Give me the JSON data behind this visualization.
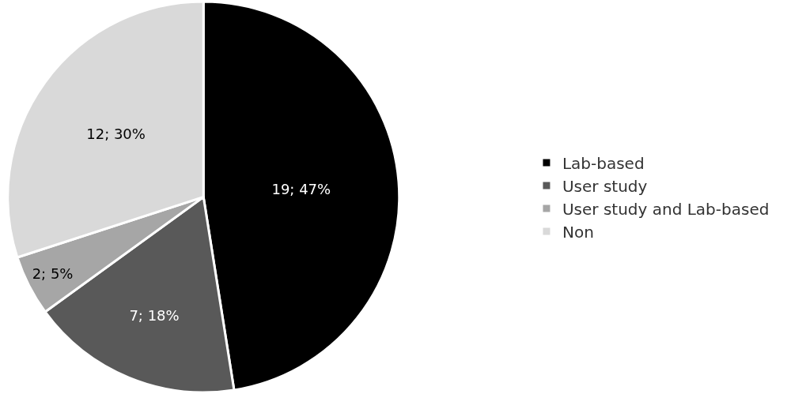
{
  "chart_data": {
    "type": "pie",
    "categories": [
      "Lab-based",
      "User study",
      "User study and Lab-based",
      "Non"
    ],
    "values": [
      19,
      7,
      2,
      12
    ],
    "colors": [
      "#000000",
      "#595959",
      "#a6a6a6",
      "#d9d9d9"
    ],
    "value_labels": [
      "19; 47%",
      "7; 18%",
      "2; 5%",
      "12; 30%"
    ],
    "legend": "right"
  }
}
